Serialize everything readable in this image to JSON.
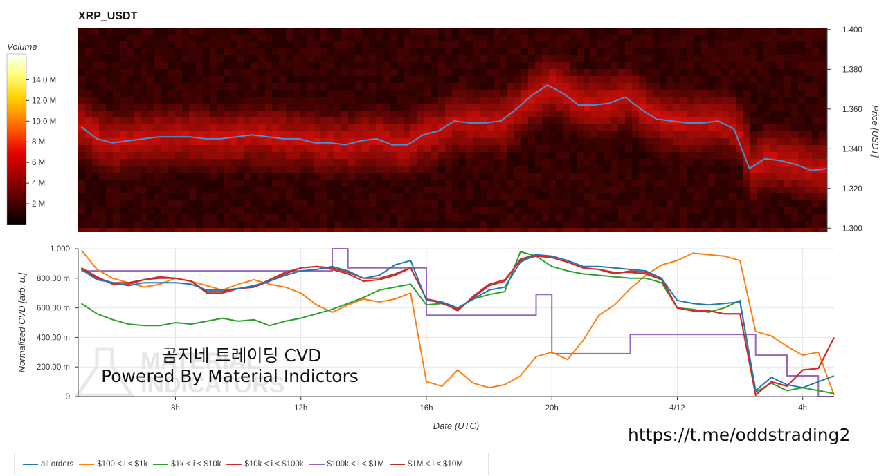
{
  "title": "XRP_USDT",
  "heatmap": {
    "colorbar_title": "Volume",
    "colorbar_ticks": [
      "2 M",
      "4 M",
      "6 M",
      "8 M",
      "10.0 M",
      "12.0 M",
      "14.0 M"
    ],
    "colorbar_values": [
      2,
      4,
      6,
      8,
      10,
      12,
      14
    ],
    "colorbar_range": [
      0,
      16.5
    ],
    "y_title": "Price [USDT]",
    "y_ticks": [
      "1.300",
      "1.320",
      "1.340",
      "1.360",
      "1.380",
      "1.400"
    ],
    "y_values": [
      1.3,
      1.32,
      1.34,
      1.36,
      1.38,
      1.4
    ],
    "ylim": [
      1.298,
      1.401
    ]
  },
  "cvd": {
    "y_title": "Normalized CVD [arb. u.]",
    "y_ticks": [
      "0",
      "200.00 m",
      "400.00 m",
      "600.00 m",
      "800.00 m",
      "1.000"
    ],
    "y_values": [
      0,
      0.2,
      0.4,
      0.6,
      0.8,
      1.0
    ],
    "x_title": "Date (UTC)",
    "x_ticks": [
      "8h",
      "12h",
      "16h",
      "20h",
      "4/12",
      "4h"
    ],
    "x_values": [
      8,
      12,
      16,
      20,
      24,
      28
    ]
  },
  "watermark": {
    "line1": "곰지네 트레이딩 CVD",
    "line2": "Powered By Material Indictors",
    "logo_line1": "MATERIAL",
    "logo_line2": "INDICATORS"
  },
  "url": "https://t.me/oddstrading2",
  "legend": [
    {
      "label": "all orders",
      "color": "#1f77b4"
    },
    {
      "label": "$100 < i < $1k",
      "color": "#ff7f0e"
    },
    {
      "label": "$1k < i < $10k",
      "color": "#2ca02c"
    },
    {
      "label": "$10k < i < $100k",
      "color": "#d62728"
    },
    {
      "label": "$100k < i < $1M",
      "color": "#9467bd"
    },
    {
      "label": "$1M < i < $10M",
      "color": "#b5322c"
    }
  ],
  "chart_data": [
    {
      "type": "heatmap",
      "title": "XRP_USDT",
      "ylabel": "Price [USDT]",
      "colorbar_label": "Volume",
      "price_series": {
        "name": "Price",
        "x": [
          5,
          5.5,
          6,
          6.5,
          7,
          7.5,
          8,
          8.5,
          9,
          9.5,
          10,
          10.5,
          11,
          11.5,
          12,
          12.5,
          13,
          13.5,
          14,
          14.5,
          15,
          15.5,
          16,
          16.5,
          17,
          17.5,
          18,
          18.5,
          19,
          19.5,
          20,
          20.5,
          21,
          21.5,
          22,
          22.5,
          23,
          23.5,
          24,
          24.5,
          25,
          25.5,
          26,
          26.5,
          27,
          27.5,
          28,
          28.5,
          29
        ],
        "y": [
          1.351,
          1.345,
          1.343,
          1.344,
          1.345,
          1.346,
          1.346,
          1.346,
          1.345,
          1.345,
          1.346,
          1.347,
          1.346,
          1.345,
          1.345,
          1.343,
          1.343,
          1.342,
          1.344,
          1.345,
          1.342,
          1.342,
          1.347,
          1.349,
          1.354,
          1.353,
          1.353,
          1.354,
          1.36,
          1.367,
          1.372,
          1.368,
          1.362,
          1.362,
          1.363,
          1.366,
          1.36,
          1.355,
          1.354,
          1.353,
          1.353,
          1.354,
          1.35,
          1.33,
          1.335,
          1.334,
          1.332,
          1.329,
          1.33
        ]
      }
    },
    {
      "type": "line",
      "xlabel": "Date (UTC)",
      "ylabel": "Normalized CVD [arb. u.]",
      "ylim": [
        0,
        1
      ],
      "x": [
        5,
        5.5,
        6,
        6.5,
        7,
        7.5,
        8,
        8.5,
        9,
        9.5,
        10,
        10.5,
        11,
        11.5,
        12,
        12.5,
        13,
        13.5,
        14,
        14.5,
        15,
        15.5,
        16,
        16.5,
        17,
        17.5,
        18,
        18.5,
        19,
        19.5,
        20,
        20.5,
        21,
        21.5,
        22,
        22.5,
        23,
        23.5,
        24,
        24.5,
        25,
        25.5,
        26,
        26.5,
        27,
        27.5,
        28,
        28.5,
        29
      ],
      "series": [
        {
          "name": "all orders",
          "values": [
            0.86,
            0.79,
            0.77,
            0.75,
            0.77,
            0.77,
            0.77,
            0.76,
            0.72,
            0.72,
            0.73,
            0.75,
            0.78,
            0.82,
            0.85,
            0.86,
            0.88,
            0.85,
            0.8,
            0.82,
            0.89,
            0.92,
            0.65,
            0.64,
            0.6,
            0.66,
            0.72,
            0.74,
            0.91,
            0.96,
            0.95,
            0.92,
            0.88,
            0.88,
            0.87,
            0.86,
            0.85,
            0.8,
            0.65,
            0.63,
            0.62,
            0.63,
            0.64,
            0.04,
            0.13,
            0.08,
            0.06,
            0.1,
            0.14
          ]
        },
        {
          "name": "$100 < i < $1k",
          "values": [
            0.99,
            0.86,
            0.8,
            0.77,
            0.74,
            0.76,
            0.8,
            0.78,
            0.75,
            0.72,
            0.76,
            0.79,
            0.76,
            0.74,
            0.7,
            0.62,
            0.57,
            0.62,
            0.66,
            0.64,
            0.66,
            0.7,
            0.1,
            0.07,
            0.18,
            0.09,
            0.06,
            0.08,
            0.14,
            0.27,
            0.3,
            0.25,
            0.38,
            0.55,
            0.62,
            0.73,
            0.82,
            0.89,
            0.92,
            0.97,
            0.96,
            0.95,
            0.92,
            0.44,
            0.41,
            0.34,
            0.28,
            0.3,
            0.01
          ]
        },
        {
          "name": "$1k < i < $10k",
          "values": [
            0.63,
            0.56,
            0.52,
            0.49,
            0.48,
            0.48,
            0.5,
            0.49,
            0.51,
            0.53,
            0.51,
            0.52,
            0.48,
            0.51,
            0.53,
            0.56,
            0.59,
            0.63,
            0.67,
            0.72,
            0.74,
            0.76,
            0.62,
            0.63,
            0.6,
            0.66,
            0.69,
            0.71,
            0.98,
            0.95,
            0.88,
            0.85,
            0.83,
            0.82,
            0.81,
            0.8,
            0.8,
            0.77,
            0.6,
            0.59,
            0.57,
            0.6,
            0.65,
            0.03,
            0.09,
            0.04,
            0.06,
            0.04,
            0.02
          ]
        },
        {
          "name": "$10k < i < $100k",
          "values": [
            0.87,
            0.81,
            0.76,
            0.76,
            0.79,
            0.81,
            0.8,
            0.78,
            0.7,
            0.7,
            0.73,
            0.74,
            0.78,
            0.83,
            0.87,
            0.88,
            0.86,
            0.83,
            0.78,
            0.79,
            0.82,
            0.87,
            0.66,
            0.64,
            0.58,
            0.68,
            0.76,
            0.79,
            0.92,
            0.95,
            0.94,
            0.91,
            0.87,
            0.86,
            0.83,
            0.85,
            0.84,
            0.8,
            0.6,
            0.58,
            0.58,
            0.56,
            0.56,
            0.01,
            0.1,
            0.07,
            0.18,
            0.19,
            0.4
          ]
        },
        {
          "name": "$100k < i < $1M",
          "values": [
            0.85,
            0.85,
            0.85,
            0.85,
            0.85,
            0.85,
            0.85,
            0.85,
            0.85,
            0.85,
            0.85,
            0.85,
            0.85,
            0.85,
            0.85,
            0.85,
            1.0,
            0.87,
            0.87,
            0.87,
            0.87,
            0.87,
            0.55,
            0.55,
            0.55,
            0.55,
            0.55,
            0.55,
            0.55,
            0.69,
            0.29,
            0.29,
            0.29,
            0.29,
            0.29,
            0.42,
            0.42,
            0.42,
            0.42,
            0.42,
            0.42,
            0.42,
            0.42,
            0.28,
            0.28,
            0.14,
            0.14,
            0.0,
            0.0
          ]
        },
        {
          "name": "$1M < i < $10M",
          "values": [
            0.86,
            0.8,
            0.77,
            0.77,
            0.79,
            0.8,
            0.8,
            0.78,
            0.71,
            0.71,
            0.73,
            0.74,
            0.79,
            0.84,
            0.87,
            0.88,
            0.87,
            0.84,
            0.8,
            0.8,
            0.83,
            0.87,
            0.66,
            0.63,
            0.59,
            0.67,
            0.75,
            0.78,
            0.93,
            0.96,
            0.94,
            0.91,
            0.87,
            0.86,
            0.84,
            0.84,
            0.83,
            0.79,
            0.6,
            0.58,
            0.58,
            0.56,
            0.56,
            0.01,
            0.1,
            0.07,
            0.18,
            0.19,
            0.4
          ]
        }
      ]
    }
  ]
}
